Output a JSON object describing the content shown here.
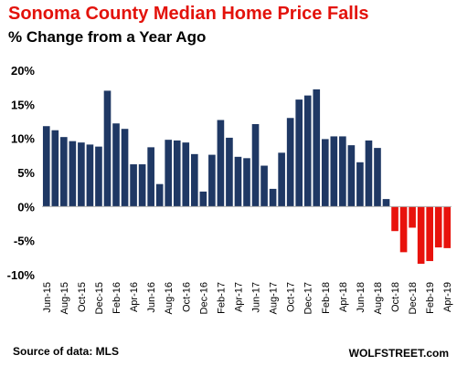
{
  "chart_data": {
    "type": "bar",
    "title": "Sonoma County Median Home Price Falls",
    "subtitle": "% Change from a Year Ago",
    "xlabel": "",
    "ylabel": "",
    "ylim": [
      -10,
      20
    ],
    "yticks": [
      20,
      15,
      10,
      5,
      0,
      -5,
      -10
    ],
    "yticklabels": [
      "20%",
      "15%",
      "10%",
      "5%",
      "0%",
      "-5%",
      "-10%"
    ],
    "grid": false,
    "legend": "none",
    "colors": {
      "positive": "#1f3864",
      "negative": "#e8120c"
    },
    "categories": [
      "Jun-15",
      "Jul-15",
      "Aug-15",
      "Sep-15",
      "Oct-15",
      "Nov-15",
      "Dec-15",
      "Jan-16",
      "Feb-16",
      "Mar-16",
      "Apr-16",
      "May-16",
      "Jun-16",
      "Jul-16",
      "Aug-16",
      "Sep-16",
      "Oct-16",
      "Nov-16",
      "Dec-16",
      "Jan-17",
      "Feb-17",
      "Mar-17",
      "Apr-17",
      "May-17",
      "Jun-17",
      "Jul-17",
      "Aug-17",
      "Sep-17",
      "Oct-17",
      "Nov-17",
      "Dec-17",
      "Jan-18",
      "Feb-18",
      "Mar-18",
      "Apr-18",
      "May-18",
      "Jun-18",
      "Jul-18",
      "Aug-18",
      "Sep-18",
      "Oct-18",
      "Nov-18",
      "Dec-18",
      "Jan-19",
      "Feb-19",
      "Mar-19",
      "Apr-19"
    ],
    "tick_labels": [
      "Jun-15",
      "Aug-15",
      "Oct-15",
      "Dec-15",
      "Feb-16",
      "Apr-16",
      "Jun-16",
      "Aug-16",
      "Oct-16",
      "Dec-16",
      "Feb-17",
      "Apr-17",
      "Jun-17",
      "Aug-17",
      "Oct-17",
      "Dec-17",
      "Feb-18",
      "Apr-18",
      "Jun-18",
      "Aug-18",
      "Oct-18",
      "Dec-18",
      "Feb-19",
      "Apr-19"
    ],
    "values": [
      11.8,
      11.2,
      10.2,
      9.6,
      9.4,
      9.1,
      8.8,
      17.0,
      12.2,
      11.4,
      6.2,
      6.2,
      8.7,
      3.3,
      9.8,
      9.7,
      9.4,
      7.7,
      2.2,
      7.6,
      12.7,
      10.1,
      7.3,
      7.1,
      12.1,
      6.0,
      2.6,
      7.9,
      13.0,
      15.7,
      16.3,
      17.2,
      9.9,
      10.3,
      10.3,
      9.0,
      6.5,
      9.7,
      8.6,
      1.1,
      -3.6,
      -6.7,
      -3.1,
      -8.4,
      -8.0,
      -6.0,
      -6.1
    ]
  },
  "footer": {
    "source": "Source of data: MLS",
    "credit": "WOLFSTREET.com"
  }
}
